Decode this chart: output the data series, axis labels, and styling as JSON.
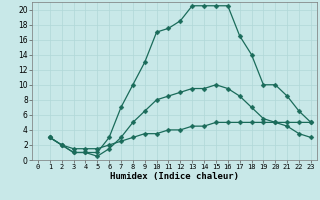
{
  "bg_color": "#c8e8e8",
  "grid_color": "#b0d8d8",
  "line_color": "#1a6b5a",
  "xlabel": "Humidex (Indice chaleur)",
  "xlim": [
    -0.5,
    23.5
  ],
  "ylim": [
    0,
    21
  ],
  "xticks": [
    0,
    1,
    2,
    3,
    4,
    5,
    6,
    7,
    8,
    9,
    10,
    11,
    12,
    13,
    14,
    15,
    16,
    17,
    18,
    19,
    20,
    21,
    22,
    23
  ],
  "yticks": [
    0,
    2,
    4,
    6,
    8,
    10,
    12,
    14,
    16,
    18,
    20
  ],
  "curves": [
    {
      "x": [
        1,
        2,
        3,
        4,
        5,
        6,
        7,
        8,
        9,
        10,
        11,
        12,
        13,
        14,
        15,
        16,
        17,
        18,
        19,
        20,
        21,
        22,
        23
      ],
      "y": [
        3,
        2,
        1,
        1,
        1,
        3,
        7,
        10,
        13,
        17,
        17.5,
        18.5,
        20.5,
        20.5,
        20.5,
        20.5,
        16.5,
        14,
        10,
        10,
        8.5,
        6.5,
        5
      ]
    },
    {
      "x": [
        1,
        2,
        3,
        4,
        5,
        6,
        7,
        8,
        9,
        10,
        11,
        12,
        13,
        14,
        15,
        16,
        17,
        18,
        19,
        20,
        21,
        22,
        23
      ],
      "y": [
        3,
        2,
        1,
        1,
        0.5,
        1.5,
        3,
        5,
        6.5,
        8,
        8.5,
        9,
        9.5,
        9.5,
        10,
        9.5,
        8.5,
        7,
        5.5,
        5,
        4.5,
        3.5,
        3
      ]
    },
    {
      "x": [
        1,
        2,
        3,
        4,
        5,
        6,
        7,
        8,
        9,
        10,
        11,
        12,
        13,
        14,
        15,
        16,
        17,
        18,
        19,
        20,
        21,
        22,
        23
      ],
      "y": [
        3,
        2,
        1.5,
        1.5,
        1.5,
        2,
        2.5,
        3,
        3.5,
        3.5,
        4,
        4,
        4.5,
        4.5,
        5,
        5,
        5,
        5,
        5,
        5,
        5,
        5,
        5
      ]
    }
  ]
}
